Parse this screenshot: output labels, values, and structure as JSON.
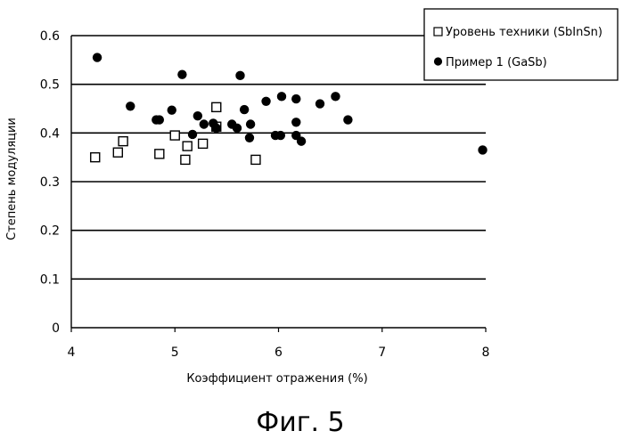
{
  "chart_data": {
    "type": "scatter",
    "title": "",
    "caption": "Фиг. 5",
    "xlabel": "Коэффициент отражения (%)",
    "ylabel": "Степень модуляции",
    "xlim": [
      4,
      8
    ],
    "ylim": [
      0,
      0.6
    ],
    "x_ticks": [
      "4",
      "5",
      "6",
      "7",
      "8"
    ],
    "y_ticks": [
      "0",
      "0.1",
      "0.2",
      "0.3",
      "0.4",
      "0.5",
      "0.6"
    ],
    "grid": "horizontal",
    "legend_position": "top-right",
    "series": [
      {
        "name": "Уровень техники (SbInSn)",
        "marker": "open-square",
        "color": "#000000",
        "points": [
          [
            4.23,
            0.35
          ],
          [
            4.45,
            0.36
          ],
          [
            4.5,
            0.383
          ],
          [
            4.85,
            0.357
          ],
          [
            5.0,
            0.395
          ],
          [
            5.1,
            0.345
          ],
          [
            5.12,
            0.373
          ],
          [
            5.27,
            0.378
          ],
          [
            5.4,
            0.453
          ],
          [
            5.4,
            0.413
          ],
          [
            5.78,
            0.345
          ]
        ]
      },
      {
        "name": "Пример 1 (GaSb)",
        "marker": "filled-circle",
        "color": "#000000",
        "points": [
          [
            4.25,
            0.555
          ],
          [
            4.57,
            0.455
          ],
          [
            4.82,
            0.427
          ],
          [
            4.85,
            0.427
          ],
          [
            4.97,
            0.447
          ],
          [
            5.07,
            0.52
          ],
          [
            5.17,
            0.397
          ],
          [
            5.22,
            0.435
          ],
          [
            5.28,
            0.418
          ],
          [
            5.37,
            0.42
          ],
          [
            5.4,
            0.41
          ],
          [
            5.55,
            0.418
          ],
          [
            5.6,
            0.41
          ],
          [
            5.63,
            0.518
          ],
          [
            5.67,
            0.448
          ],
          [
            5.72,
            0.39
          ],
          [
            5.73,
            0.418
          ],
          [
            5.88,
            0.465
          ],
          [
            5.97,
            0.395
          ],
          [
            6.02,
            0.395
          ],
          [
            6.03,
            0.475
          ],
          [
            6.17,
            0.47
          ],
          [
            6.17,
            0.422
          ],
          [
            6.17,
            0.395
          ],
          [
            6.22,
            0.383
          ],
          [
            6.4,
            0.46
          ],
          [
            6.55,
            0.475
          ],
          [
            6.67,
            0.427
          ],
          [
            7.97,
            0.365
          ]
        ]
      }
    ]
  }
}
